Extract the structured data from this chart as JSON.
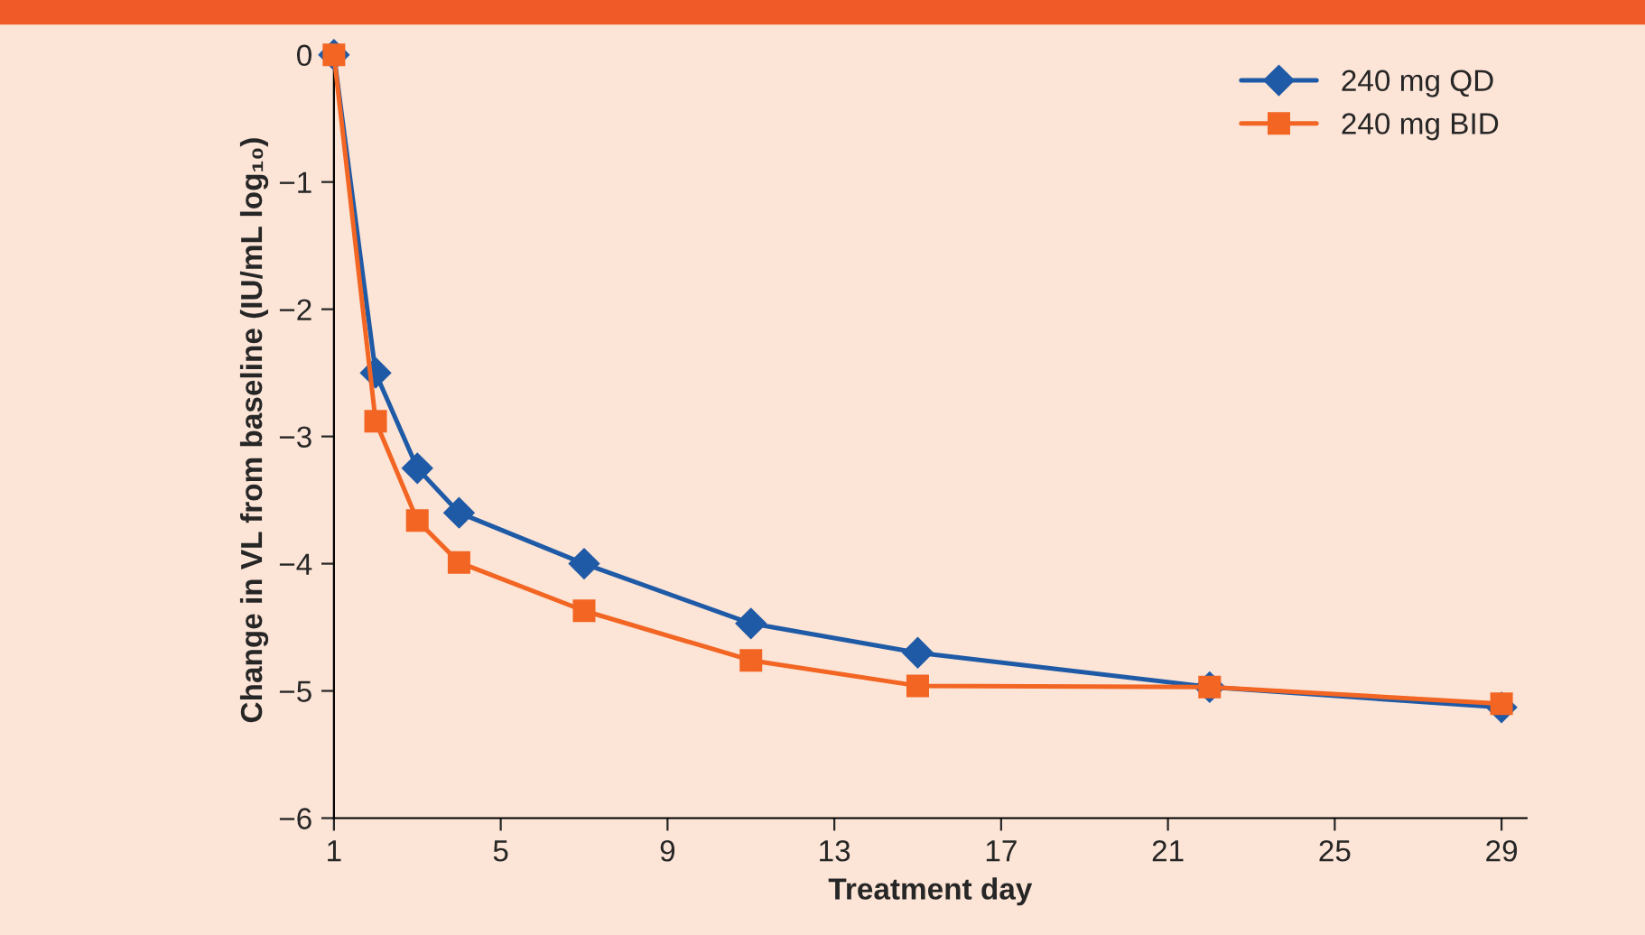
{
  "chart_data": {
    "type": "line",
    "xlabel": "Treatment day",
    "ylabel": "Change in VL from baseline (IU/mL log₁₀)",
    "series": [
      {
        "name": "240 mg QD",
        "color": "#1f5aa6",
        "marker": "diamond",
        "x": [
          1,
          2,
          3,
          4,
          7,
          11,
          15,
          22,
          29
        ],
        "values": [
          0,
          -2.5,
          -3.25,
          -3.6,
          -4.0,
          -4.47,
          -4.7,
          -4.97,
          -5.13
        ]
      },
      {
        "name": "240 mg BID",
        "color": "#f26522",
        "marker": "square",
        "x": [
          1,
          2,
          3,
          4,
          7,
          11,
          15,
          22,
          29
        ],
        "values": [
          0,
          -2.88,
          -3.66,
          -3.99,
          -4.37,
          -4.76,
          -4.96,
          -4.97,
          -5.1
        ]
      }
    ],
    "xlim": [
      1,
      29.6
    ],
    "xticks": [
      1,
      5,
      9,
      13,
      17,
      21,
      25,
      29
    ],
    "ylim": [
      -6,
      0.1
    ],
    "yticks": [
      0,
      {
        "value": -1,
        "label": "−1"
      },
      {
        "value": -2,
        "label": "−2"
      },
      {
        "value": -3,
        "label": "−3"
      },
      {
        "value": -4,
        "label": "−4"
      },
      {
        "value": -5,
        "label": "−5"
      },
      {
        "value": -6,
        "label": "−6"
      }
    ],
    "grid": false,
    "legend": "top right",
    "line_style": "solid"
  }
}
